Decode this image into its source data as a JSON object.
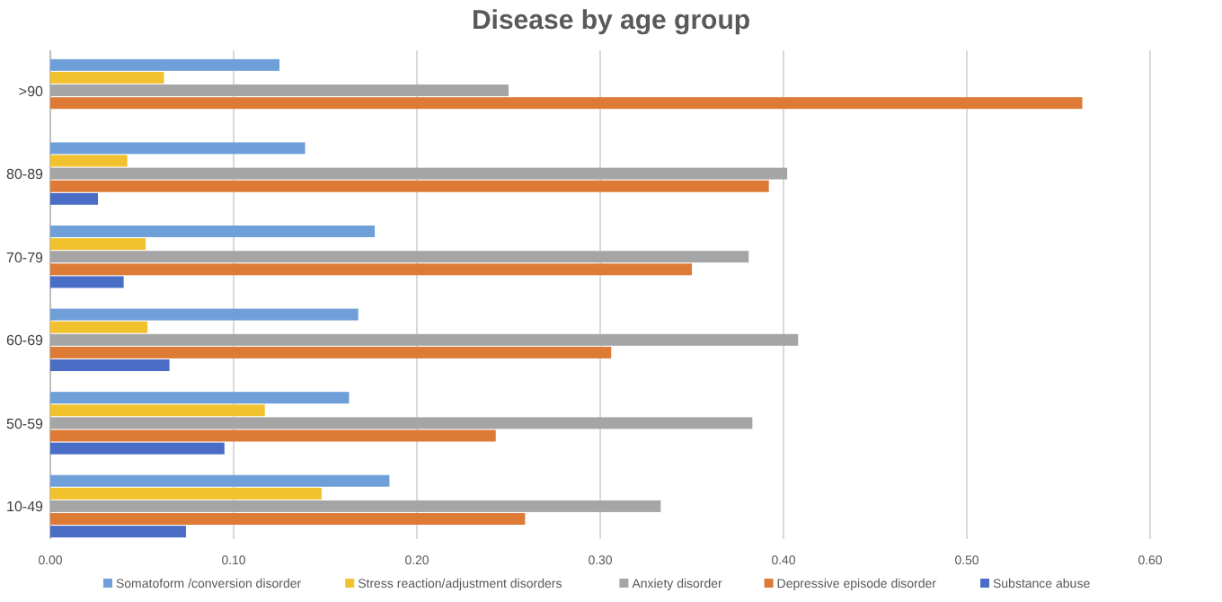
{
  "chart_data": {
    "type": "bar",
    "orientation": "horizontal",
    "title": "Disease by age group",
    "categories": [
      ">90",
      "80-89",
      "70-79",
      "60-69",
      "50-59",
      "10-49"
    ],
    "series": [
      {
        "name": "Somatoform /conversion disorder",
        "color": "#6f9fd8",
        "values": [
          0.125,
          0.139,
          0.177,
          0.168,
          0.163,
          0.185
        ]
      },
      {
        "name": "Stress reaction/adjustment disorders",
        "color": "#f2c12e",
        "values": [
          0.062,
          0.042,
          0.052,
          0.053,
          0.117,
          0.148
        ]
      },
      {
        "name": "Anxiety disorder",
        "color": "#a5a5a5",
        "values": [
          0.25,
          0.402,
          0.381,
          0.408,
          0.383,
          0.333
        ]
      },
      {
        "name": "Depressive episode disorder",
        "color": "#dd7b36",
        "values": [
          0.563,
          0.392,
          0.35,
          0.306,
          0.243,
          0.259
        ]
      },
      {
        "name": "Substance abuse",
        "color": "#4a6ec5",
        "values": [
          null,
          0.026,
          0.04,
          0.065,
          0.095,
          0.074
        ]
      }
    ],
    "xlim": [
      0,
      0.6
    ],
    "xticks": [
      {
        "value": 0,
        "label": "0.00"
      },
      {
        "value": 0.1,
        "label": "0.10"
      },
      {
        "value": 0.2,
        "label": "0.20"
      },
      {
        "value": 0.3,
        "label": "0.30"
      },
      {
        "value": 0.4,
        "label": "0.40"
      },
      {
        "value": 0.5,
        "label": "0.50"
      },
      {
        "value": 0.6,
        "label": "0.60"
      }
    ],
    "grid": "x",
    "legend": "bottom"
  }
}
